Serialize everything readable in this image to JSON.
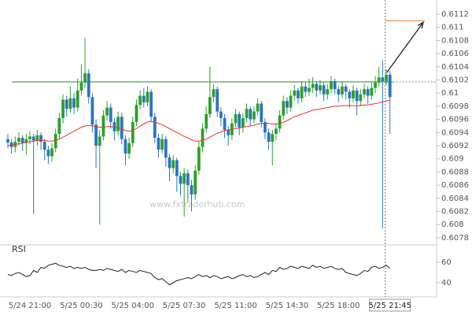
{
  "chart_data": {
    "type": "candlestick",
    "watermark": "www.fxtraderhub.com",
    "categories": [
      null,
      null,
      null,
      null,
      null,
      null,
      "5/24 21:00",
      null,
      null,
      null,
      null,
      null,
      null,
      null,
      null,
      null,
      null,
      null,
      null,
      null,
      "5/25 00:30",
      null,
      null,
      null,
      null,
      null,
      null,
      null,
      null,
      null,
      null,
      null,
      null,
      null,
      "5/25 04:00",
      null,
      null,
      null,
      null,
      null,
      null,
      null,
      null,
      null,
      null,
      null,
      null,
      null,
      "5/25 07:30",
      null,
      null,
      null,
      null,
      null,
      null,
      null,
      null,
      null,
      null,
      null,
      null,
      null,
      "5/25 11:00",
      null,
      null,
      null,
      null,
      null,
      null,
      null,
      null,
      null,
      null,
      null,
      null,
      null,
      "5/25 14:30",
      null,
      null,
      null,
      null,
      null,
      null,
      null,
      null,
      null,
      null,
      null,
      null,
      null,
      "5/25 18:00",
      null,
      null,
      null,
      null,
      null,
      null,
      null,
      null,
      null,
      null,
      null,
      null,
      null,
      "5/25 21:45"
    ],
    "open": [
      0.6093,
      0.60925,
      0.60918,
      0.60926,
      0.60932,
      0.60924,
      0.6093,
      0.60934,
      0.60928,
      0.60936,
      0.60926,
      0.60914,
      0.60904,
      0.60916,
      0.60938,
      0.60962,
      0.6099,
      0.60976,
      0.60992,
      0.60978,
      0.61004,
      0.61016,
      0.6103,
      0.60994,
      0.60952,
      0.6092,
      0.60934,
      0.60966,
      0.60978,
      0.60956,
      0.60942,
      0.60964,
      0.6093,
      0.60908,
      0.60924,
      0.60956,
      0.60982,
      0.60996,
      0.60986,
      0.61002,
      0.60964,
      0.60932,
      0.60914,
      0.6093,
      0.60902,
      0.60886,
      0.60898,
      0.60874,
      0.60862,
      0.60878,
      0.6086,
      0.60846,
      0.60882,
      0.60918,
      0.60946,
      0.60968,
      0.60994,
      0.61006,
      0.60972,
      0.60962,
      0.60944,
      0.60936,
      0.60954,
      0.60968,
      0.60948,
      0.60962,
      0.60976,
      0.6096,
      0.60972,
      0.60984,
      0.60956,
      0.6094,
      0.60926,
      0.60938,
      0.60946,
      0.60966,
      0.60988,
      0.60978,
      0.60996,
      0.61004,
      0.60992,
      0.6101,
      0.61002,
      0.61008,
      0.61014,
      0.61004,
      0.61012,
      0.60998,
      0.61006,
      0.61018,
      0.61006,
      0.60998,
      0.6101,
      0.61002,
      0.60992,
      0.61004,
      0.60988,
      0.60998,
      0.61006,
      0.60996,
      0.61008,
      0.61016,
      0.61024,
      0.61018,
      0.61028
    ],
    "high": [
      0.60938,
      0.6093,
      0.60934,
      0.6094,
      0.60936,
      0.60938,
      0.60942,
      0.60938,
      0.60944,
      0.6094,
      0.6093,
      0.6092,
      0.60924,
      0.60946,
      0.6097,
      0.60998,
      0.60996,
      0.6101,
      0.61,
      0.61022,
      0.61044,
      0.61084,
      0.61036,
      0.61,
      0.6096,
      0.60944,
      0.60974,
      0.60988,
      0.60984,
      0.60962,
      0.60972,
      0.6097,
      0.60936,
      0.60932,
      0.60964,
      0.6099,
      0.61004,
      0.61008,
      0.6101,
      0.61006,
      0.6097,
      0.60938,
      0.60938,
      0.60934,
      0.60908,
      0.60906,
      0.60902,
      0.6088,
      0.60886,
      0.60884,
      0.60868,
      0.6089,
      0.60926,
      0.60954,
      0.6098,
      0.6104,
      0.61014,
      0.6101,
      0.60978,
      0.60968,
      0.6095,
      0.60962,
      0.60976,
      0.60972,
      0.6097,
      0.60984,
      0.6098,
      0.6098,
      0.60992,
      0.60988,
      0.60962,
      0.60946,
      0.60944,
      0.60954,
      0.60974,
      0.60996,
      0.60994,
      0.61004,
      0.61012,
      0.61008,
      0.61018,
      0.61016,
      0.61022,
      0.61024,
      0.61018,
      0.6102,
      0.61016,
      0.61014,
      0.61026,
      0.61022,
      0.6101,
      0.61018,
      0.61014,
      0.61006,
      0.61012,
      0.61008,
      0.61006,
      0.61014,
      0.6101,
      0.61016,
      0.61026,
      0.6104,
      0.6105,
      0.61036,
      0.61034
    ],
    "low": [
      0.60916,
      0.60908,
      0.6091,
      0.6092,
      0.60912,
      0.60906,
      0.60922,
      0.60816,
      0.6092,
      0.60914,
      0.60898,
      0.60892,
      0.60896,
      0.6091,
      0.6093,
      0.60954,
      0.60964,
      0.6097,
      0.60968,
      0.60972,
      0.60996,
      0.61008,
      0.60984,
      0.6094,
      0.60886,
      0.608,
      0.60928,
      0.60958,
      0.60946,
      0.60928,
      0.60936,
      0.60922,
      0.6089,
      0.609,
      0.60918,
      0.6095,
      0.60976,
      0.60978,
      0.6098,
      0.60956,
      0.60924,
      0.60902,
      0.60908,
      0.60888,
      0.60866,
      0.60878,
      0.6085,
      0.60844,
      0.60812,
      0.60834,
      0.6082,
      0.60838,
      0.60876,
      0.6091,
      0.6094,
      0.60962,
      0.60986,
      0.60964,
      0.6095,
      0.60932,
      0.6092,
      0.60928,
      0.60948,
      0.60936,
      0.6094,
      0.60956,
      0.6095,
      0.60954,
      0.60966,
      0.60948,
      0.6093,
      0.60914,
      0.6089,
      0.60928,
      0.6094,
      0.6096,
      0.60968,
      0.60972,
      0.60988,
      0.60984,
      0.60986,
      0.60994,
      0.60996,
      0.61,
      0.60994,
      0.60998,
      0.60988,
      0.6099,
      0.61,
      0.60998,
      0.60986,
      0.60992,
      0.6099,
      0.60978,
      0.60986,
      0.60966,
      0.6098,
      0.60992,
      0.60984,
      0.6099,
      0.61,
      0.6101,
      0.60794,
      0.61012,
      0.60938
    ],
    "close": [
      0.60925,
      0.60918,
      0.60926,
      0.60932,
      0.60924,
      0.6093,
      0.60934,
      0.60928,
      0.60936,
      0.60926,
      0.60914,
      0.60904,
      0.60916,
      0.60938,
      0.60962,
      0.6099,
      0.60976,
      0.60992,
      0.60978,
      0.61004,
      0.61016,
      0.6103,
      0.60994,
      0.60952,
      0.6092,
      0.60934,
      0.60966,
      0.60978,
      0.60956,
      0.60942,
      0.60964,
      0.6093,
      0.60908,
      0.60924,
      0.60956,
      0.60982,
      0.60996,
      0.60986,
      0.61002,
      0.60964,
      0.60932,
      0.60914,
      0.6093,
      0.60902,
      0.60886,
      0.60898,
      0.60874,
      0.60862,
      0.60878,
      0.6086,
      0.60846,
      0.60882,
      0.60918,
      0.60946,
      0.60968,
      0.60994,
      0.61006,
      0.60972,
      0.60962,
      0.60944,
      0.60936,
      0.60954,
      0.60968,
      0.60948,
      0.60962,
      0.60976,
      0.6096,
      0.60972,
      0.60984,
      0.60956,
      0.6094,
      0.60926,
      0.60938,
      0.60946,
      0.60966,
      0.60988,
      0.60978,
      0.60996,
      0.61004,
      0.60992,
      0.6101,
      0.61002,
      0.61008,
      0.61014,
      0.61004,
      0.61012,
      0.60998,
      0.61006,
      0.61018,
      0.61006,
      0.60998,
      0.6101,
      0.61002,
      0.60992,
      0.61004,
      0.60988,
      0.60998,
      0.61006,
      0.60996,
      0.61008,
      0.61016,
      0.61024,
      0.61018,
      0.61028,
      0.60994
    ],
    "up_color": "#2ca02c",
    "down_color": "#2b74c0",
    "moving_average": {
      "color": "#e8322a",
      "values": [
        0.6092,
        0.60921,
        0.60922,
        0.60923,
        0.60924,
        0.60925,
        0.60926,
        0.60927,
        0.60928,
        0.60928,
        0.60928,
        0.60927,
        0.60927,
        0.60928,
        0.6093,
        0.60933,
        0.60936,
        0.60939,
        0.60942,
        0.60945,
        0.60948,
        0.6095,
        0.60951,
        0.6095,
        0.60949,
        0.60948,
        0.60948,
        0.60949,
        0.60949,
        0.60948,
        0.60948,
        0.60946,
        0.60943,
        0.60942,
        0.60943,
        0.60946,
        0.6095,
        0.60953,
        0.60956,
        0.60957,
        0.60956,
        0.60954,
        0.60952,
        0.60949,
        0.60946,
        0.60943,
        0.6094,
        0.60937,
        0.60934,
        0.60932,
        0.60929,
        0.60927,
        0.60927,
        0.60928,
        0.6093,
        0.60933,
        0.60936,
        0.60939,
        0.60941,
        0.60943,
        0.60944,
        0.60945,
        0.60946,
        0.60947,
        0.60948,
        0.60949,
        0.6095,
        0.60951,
        0.60953,
        0.60954,
        0.60954,
        0.60954,
        0.60953,
        0.60953,
        0.60954,
        0.60956,
        0.60958,
        0.60961,
        0.60964,
        0.60966,
        0.60968,
        0.6097,
        0.60972,
        0.60974,
        0.60975,
        0.60976,
        0.60977,
        0.60978,
        0.60979,
        0.6098,
        0.6098,
        0.60981,
        0.60981,
        0.60981,
        0.60981,
        0.60981,
        0.60981,
        0.60982,
        0.60982,
        0.60983,
        0.60984,
        0.60985,
        0.60987,
        0.60988,
        0.60989
      ]
    },
    "resistance": {
      "value": 0.61017,
      "color": "#8cc98c"
    },
    "target": {
      "value": 0.6111,
      "color": "#f0a060"
    },
    "ylim": [
      0.6077,
      0.6114
    ],
    "yticks": [
      0.6078,
      0.608,
      0.6082,
      0.6084,
      0.6086,
      0.6088,
      0.609,
      0.6092,
      0.6094,
      0.6096,
      0.6098,
      0.61,
      0.6102,
      0.6104,
      0.6106,
      0.6108,
      0.611,
      0.6112
    ],
    "rsi": {
      "title": "RSI",
      "color": "#222222",
      "ylim": [
        30,
        70
      ],
      "yticks": [
        40,
        60
      ],
      "values": [
        48,
        47,
        49,
        50,
        48,
        46,
        47,
        52,
        50,
        55,
        54,
        57,
        58,
        59,
        57,
        56,
        55,
        56,
        54,
        55,
        54,
        55,
        53,
        52,
        52,
        53,
        52,
        54,
        53,
        52,
        51,
        53,
        50,
        52,
        51,
        50,
        52,
        51,
        50,
        49,
        45,
        43,
        44,
        41,
        38,
        40,
        42,
        43,
        44,
        45,
        44,
        46,
        48,
        46,
        47,
        45,
        47,
        46,
        44,
        45,
        46,
        44,
        45,
        47,
        48,
        46,
        47,
        45,
        46,
        48,
        50,
        48,
        52,
        51,
        55,
        53,
        54,
        56,
        55,
        54,
        56,
        55,
        54,
        57,
        55,
        56,
        54,
        55,
        56,
        54,
        53,
        54,
        50,
        49,
        48,
        47,
        49,
        52,
        51,
        55,
        56,
        54,
        55,
        57,
        54
      ]
    }
  }
}
